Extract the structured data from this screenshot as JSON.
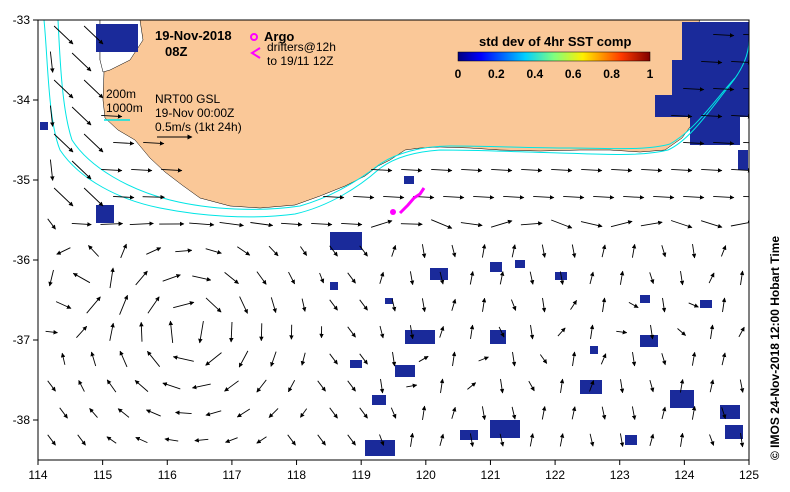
{
  "map": {
    "axes": {
      "lon_ticks": [
        "114",
        "115",
        "116",
        "117",
        "118",
        "119",
        "120",
        "121",
        "122",
        "123",
        "124",
        "125"
      ],
      "lat_ticks": [
        "-33",
        "-34",
        "-35",
        "-36",
        "-37",
        "-38"
      ]
    },
    "header": {
      "date": "19-Nov-2018",
      "time": "08Z"
    },
    "legend": {
      "argo_label": "Argo",
      "drifters_label": "drifters@12h",
      "drifters_sub": "to 19/11 12Z",
      "argo_color": "#ff00ff",
      "drifter_color": "#ff00ff"
    },
    "info": {
      "contour_200": "200m",
      "contour_1000": "1000m",
      "product": "NRT00 GSL",
      "analysis_time": "19-Nov 00:00Z",
      "scale": "0.5m/s (1kt 24h)"
    },
    "colorbar": {
      "title": "std dev of 4hr SST comp",
      "ticks": [
        "0",
        "0.2",
        "0.4",
        "0.6",
        "0.8",
        "1"
      ]
    },
    "side_label": "© IMOS 24-Nov-2018 12:00 Hobart Time",
    "colors": {
      "land": "#fac898",
      "contour": "#00e5e5",
      "sst_patch": "#1a2a9a",
      "background": "#ffffff"
    }
  }
}
